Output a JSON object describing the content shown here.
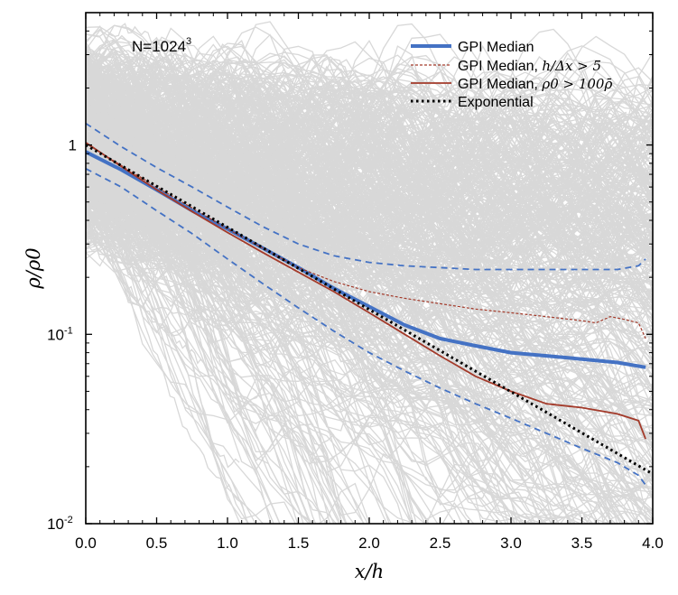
{
  "chart_data": {
    "type": "line",
    "yscale": "log",
    "xlim": [
      0.0,
      4.0
    ],
    "ylim": [
      0.01,
      5.0
    ],
    "xlabel": "x/h",
    "ylabel": "ρ/ρ0",
    "annotation": {
      "text": "N=1024",
      "superscript": "3"
    },
    "x_tick_labels": [
      "0.0",
      "0.5",
      "1.0",
      "1.5",
      "2.0",
      "2.5",
      "3.0",
      "3.5",
      "4.0"
    ],
    "y_ticks": [
      {
        "value": 1,
        "base": "1",
        "exponent": ""
      },
      {
        "value": 0.1,
        "base": "10",
        "exponent": "-1"
      },
      {
        "value": 0.01,
        "base": "10",
        "exponent": "-2"
      }
    ],
    "legend": {
      "position": "top-right",
      "entries": [
        {
          "series": "gpi-median",
          "label": "GPI Median",
          "math": ""
        },
        {
          "series": "gpi-median-resolved",
          "label": "GPI Median, ",
          "math": "h/Δx > 5"
        },
        {
          "series": "gpi-median-dense",
          "label": "GPI Median, ",
          "math": "ρ0 > 100ρ̄"
        },
        {
          "series": "exponential",
          "label": "Exponential",
          "math": ""
        }
      ]
    },
    "series": [
      {
        "id": "gpi-median",
        "name": "GPI Median",
        "color": "#4472c4",
        "style": "solid",
        "width": 4,
        "x": [
          0.0,
          0.25,
          0.5,
          0.75,
          1.0,
          1.25,
          1.5,
          1.75,
          2.0,
          2.25,
          2.5,
          2.75,
          3.0,
          3.25,
          3.5,
          3.75,
          3.95
        ],
        "y": [
          0.92,
          0.74,
          0.58,
          0.45,
          0.36,
          0.285,
          0.225,
          0.175,
          0.14,
          0.112,
          0.095,
          0.087,
          0.08,
          0.077,
          0.074,
          0.071,
          0.067
        ]
      },
      {
        "id": "gpi-upper-band",
        "name": "GPI upper band",
        "color": "#4472c4",
        "style": "dashed",
        "width": 1.8,
        "x": [
          0.0,
          0.25,
          0.5,
          0.75,
          1.0,
          1.25,
          1.5,
          1.75,
          2.0,
          2.25,
          2.5,
          2.75,
          3.0,
          3.25,
          3.5,
          3.75,
          3.9,
          3.95
        ],
        "y": [
          1.3,
          0.98,
          0.76,
          0.6,
          0.47,
          0.37,
          0.3,
          0.26,
          0.24,
          0.23,
          0.225,
          0.22,
          0.22,
          0.22,
          0.22,
          0.22,
          0.23,
          0.25
        ]
      },
      {
        "id": "gpi-lower-band",
        "name": "GPI lower band",
        "color": "#4472c4",
        "style": "dashed",
        "width": 1.8,
        "x": [
          0.0,
          0.25,
          0.5,
          0.75,
          1.0,
          1.25,
          1.5,
          1.75,
          2.0,
          2.25,
          2.5,
          2.75,
          3.0,
          3.25,
          3.5,
          3.75,
          3.9,
          3.95
        ],
        "y": [
          0.75,
          0.6,
          0.45,
          0.34,
          0.25,
          0.185,
          0.138,
          0.104,
          0.08,
          0.064,
          0.052,
          0.043,
          0.036,
          0.03,
          0.025,
          0.021,
          0.018,
          0.016
        ]
      },
      {
        "id": "gpi-median-resolved",
        "name": "GPI Median, h/Δx > 5",
        "color": "#a33a2a",
        "style": "dashed-thin",
        "width": 1.2,
        "x": [
          0.0,
          0.25,
          0.5,
          0.75,
          1.0,
          1.25,
          1.5,
          1.75,
          2.0,
          2.25,
          2.5,
          2.75,
          3.0,
          3.25,
          3.5,
          3.6,
          3.7,
          3.8,
          3.9,
          3.95
        ],
        "y": [
          1.02,
          0.78,
          0.6,
          0.465,
          0.36,
          0.285,
          0.225,
          0.19,
          0.168,
          0.155,
          0.145,
          0.136,
          0.13,
          0.124,
          0.118,
          0.115,
          0.124,
          0.12,
          0.115,
          0.095
        ]
      },
      {
        "id": "gpi-median-dense",
        "name": "GPI Median, ρ0 > 100ρ̄",
        "color": "#a33a2a",
        "style": "solid",
        "width": 1.8,
        "x": [
          0.0,
          0.25,
          0.5,
          0.75,
          1.0,
          1.25,
          1.5,
          1.75,
          2.0,
          2.25,
          2.5,
          2.75,
          3.0,
          3.25,
          3.5,
          3.75,
          3.9,
          3.95
        ],
        "y": [
          1.03,
          0.77,
          0.58,
          0.445,
          0.345,
          0.27,
          0.213,
          0.168,
          0.13,
          0.1,
          0.077,
          0.06,
          0.05,
          0.043,
          0.041,
          0.038,
          0.035,
          0.028
        ]
      },
      {
        "id": "exponential",
        "name": "Exponential",
        "color": "#000000",
        "style": "dotted",
        "width": 3,
        "x": [
          0.0,
          4.0
        ],
        "y": [
          1.0,
          0.0183
        ]
      }
    ]
  }
}
